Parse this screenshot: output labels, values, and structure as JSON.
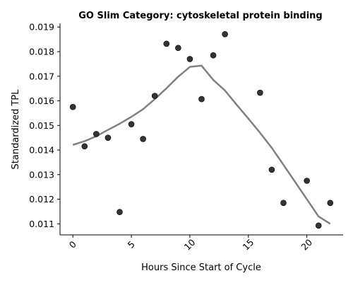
{
  "chart_data": {
    "type": "scatter",
    "title": "GO Slim Category: cytoskeletal protein binding",
    "xlabel": "Hours Since Start of Cycle",
    "ylabel": "Standardized TPL",
    "xlim": [
      -1.1,
      23.1
    ],
    "ylim": [
      0.01055,
      0.01915
    ],
    "x_ticks": [
      0,
      5,
      10,
      15,
      20
    ],
    "y_ticks": [
      0.011,
      0.012,
      0.013,
      0.014,
      0.015,
      0.016,
      0.017,
      0.018,
      0.019
    ],
    "x_tick_labels": [
      "0",
      "5",
      "10",
      "15",
      "20"
    ],
    "y_tick_labels": [
      "0.011",
      "0.012",
      "0.013",
      "0.014",
      "0.015",
      "0.016",
      "0.017",
      "0.018",
      "0.019"
    ],
    "grid": false,
    "points": {
      "x": [
        0,
        1,
        2,
        3,
        4,
        5,
        6,
        7,
        8,
        9,
        10,
        11,
        12,
        13,
        16,
        17,
        18,
        20,
        21,
        22
      ],
      "y": [
        0.01575,
        0.01415,
        0.01465,
        0.0145,
        0.01148,
        0.01505,
        0.01445,
        0.0162,
        0.01832,
        0.01815,
        0.0177,
        0.01607,
        0.01785,
        0.01871,
        0.01633,
        0.0132,
        0.01185,
        0.01275,
        0.01093,
        0.01185
      ],
      "color": "#333333"
    },
    "trend_line": {
      "x": [
        0,
        1,
        2,
        3,
        4,
        5,
        6,
        7,
        8,
        9,
        10,
        11,
        12,
        13,
        14,
        15,
        16,
        17,
        18,
        19,
        20,
        21,
        22
      ],
      "y": [
        0.01421,
        0.01436,
        0.01456,
        0.01482,
        0.01507,
        0.01535,
        0.01566,
        0.01607,
        0.01651,
        0.01698,
        0.01738,
        0.01743,
        0.01685,
        0.01642,
        0.01584,
        0.01528,
        0.0147,
        0.01409,
        0.0134,
        0.0127,
        0.012,
        0.0113,
        0.011
      ],
      "color": "#808080"
    }
  }
}
